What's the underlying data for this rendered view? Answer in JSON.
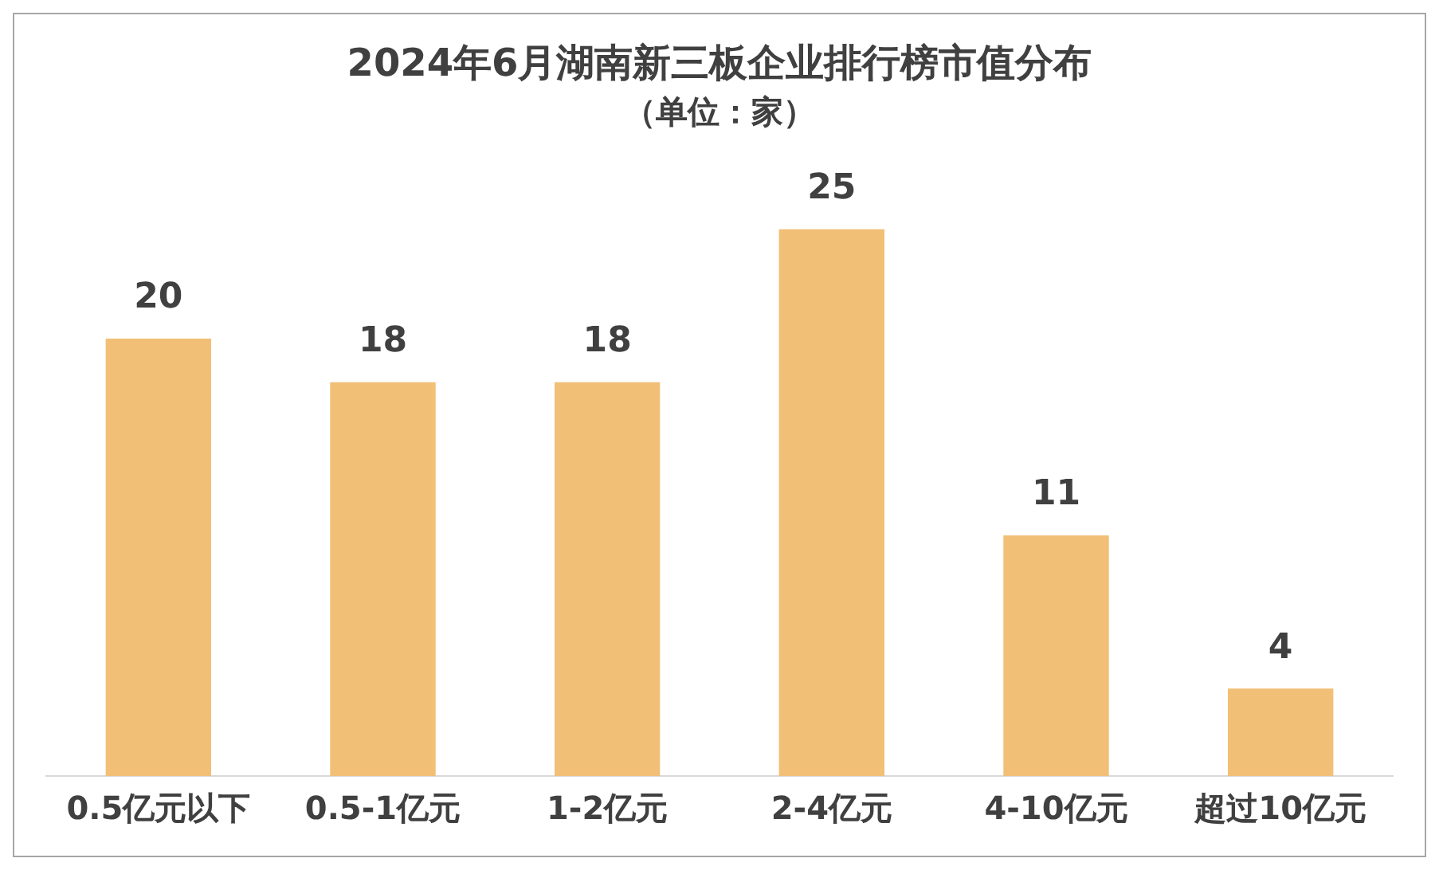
{
  "chart_data": {
    "type": "bar",
    "title": "2024年6月湖南新三板企业排行榜市值分布",
    "subtitle": "（单位：家）",
    "categories": [
      "0.5亿元以下",
      "0.5-1亿元",
      "1-2亿元",
      "2-4亿元",
      "4-10亿元",
      "超过10亿元"
    ],
    "values": [
      20,
      18,
      18,
      25,
      11,
      4
    ],
    "color": "#f2bf77",
    "data_labels": true,
    "grid": false,
    "legend": false,
    "tick_labels": "x"
  }
}
